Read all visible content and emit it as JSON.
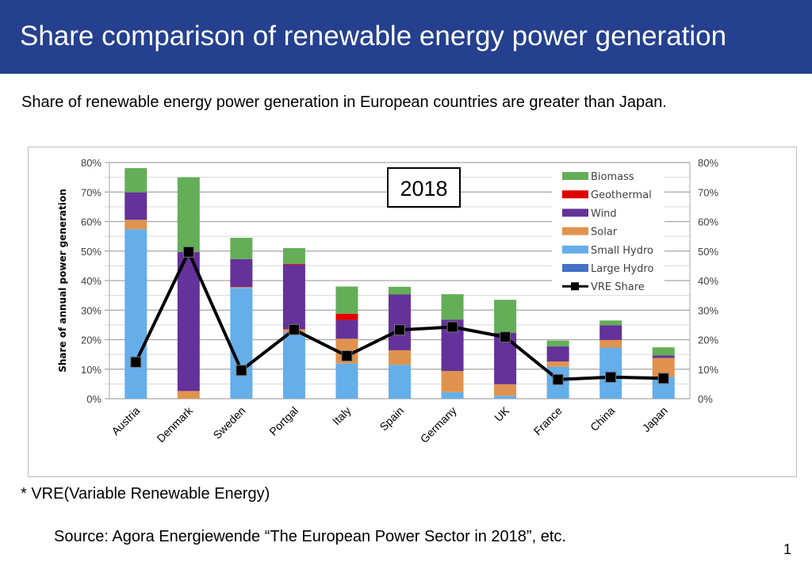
{
  "header": {
    "title": "Share comparison of renewable energy power generation"
  },
  "subtitle": "Share of renewable energy power generation in European countries are greater than Japan.",
  "footnote": "* VRE(Variable Renewable Energy)",
  "source": "Source: Agora Energiewende “The European Power Sector in 2018”, etc.",
  "page_number": "1",
  "colors": {
    "header": "#24408e"
  },
  "chart_data": {
    "type": "bar",
    "stacked": true,
    "annotation": "2018",
    "ylabel": "Share of annual power generation",
    "ylim": [
      0,
      80
    ],
    "y2lim": [
      0,
      80
    ],
    "yticks": [
      "0%",
      "10%",
      "20%",
      "30%",
      "40%",
      "50%",
      "60%",
      "70%",
      "80%"
    ],
    "grid": true,
    "legend_placement": "top-right",
    "categories": [
      "Austria",
      "Denmark",
      "Sweden",
      "Portgal",
      "Italy",
      "Spain",
      "Germany",
      "UK",
      "France",
      "China",
      "Japan"
    ],
    "series": [
      {
        "name": "Large Hydro",
        "color": "#4472c4",
        "values": [
          0,
          0,
          0,
          0,
          0,
          0,
          0,
          0,
          0,
          0,
          0
        ]
      },
      {
        "name": "Small Hydro",
        "color": "#64aeea",
        "values": [
          57.4,
          0,
          37.5,
          22.5,
          11.9,
          11.5,
          2.2,
          1.0,
          10.8,
          17.3,
          7.4
        ]
      },
      {
        "name": "Solar",
        "color": "#e0934e",
        "values": [
          3.2,
          2.6,
          0.3,
          1.0,
          8.4,
          4.9,
          7.2,
          3.9,
          1.8,
          2.6,
          6.4
        ]
      },
      {
        "name": "Wind",
        "color": "#64329a",
        "values": [
          9.3,
          47.1,
          9.5,
          21.9,
          6.3,
          18.9,
          17.4,
          17.4,
          5.1,
          5.0,
          0.9
        ]
      },
      {
        "name": "Geothermal",
        "color": "#e00000",
        "values": [
          0,
          0,
          0,
          0.3,
          2.2,
          0,
          0,
          0,
          0,
          0,
          0
        ]
      },
      {
        "name": "Biomass",
        "color": "#64ae58",
        "values": [
          8.2,
          25.3,
          7.2,
          5.3,
          9.2,
          2.6,
          8.6,
          11.2,
          2.0,
          1.6,
          2.7
        ]
      }
    ],
    "line_series": {
      "name": "VRE Share",
      "color": "#000000",
      "axis": "right",
      "values": [
        12.4,
        49.7,
        9.6,
        23.4,
        14.5,
        23.3,
        24.3,
        20.9,
        6.5,
        7.3,
        6.9
      ]
    }
  }
}
